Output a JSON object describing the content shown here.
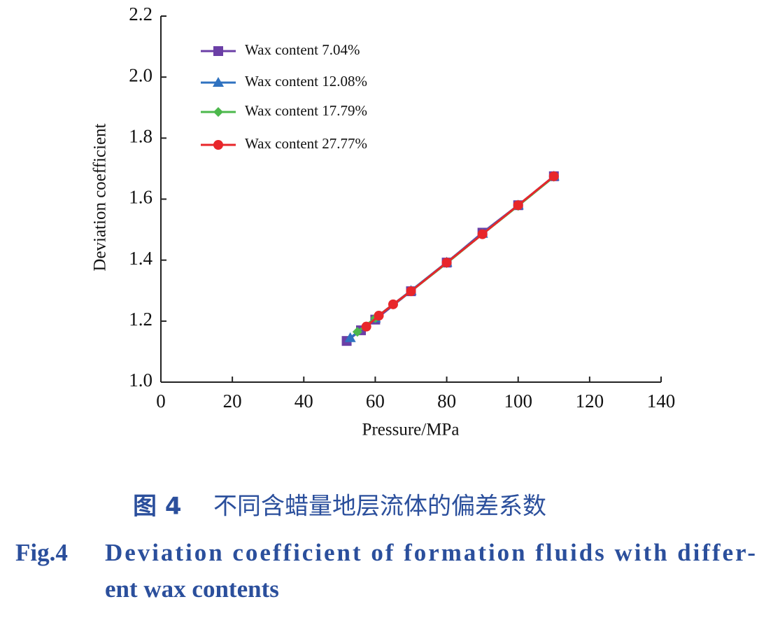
{
  "chart_data": {
    "type": "line",
    "xlabel": "Pressure/MPa",
    "ylabel": "Deviation coefficient",
    "xlim": [
      0,
      140
    ],
    "xticks": [
      0,
      20,
      40,
      60,
      80,
      100,
      120,
      140
    ],
    "ylim": [
      1.0,
      2.2
    ],
    "yticks": [
      {
        "value": 1.0,
        "label": "1.0"
      },
      1.2,
      1.4,
      1.6,
      1.8,
      {
        "value": 2.0,
        "label": "2.0"
      },
      2.2
    ],
    "grid": false,
    "legend": "upper left",
    "series": [
      {
        "name": "Wax content 7.04%",
        "color": "#6b3fa6",
        "marker": "square",
        "x": [
          52,
          56,
          60,
          70,
          80,
          90,
          100,
          110
        ],
        "values": [
          1.135,
          1.17,
          1.205,
          1.298,
          1.392,
          1.49,
          1.58,
          1.675
        ]
      },
      {
        "name": "Wax content 12.08%",
        "color": "#2f72c0",
        "marker": "triangle",
        "x": [
          53,
          60,
          70,
          80,
          90,
          100,
          110
        ],
        "values": [
          1.145,
          1.21,
          1.3,
          1.393,
          1.487,
          1.58,
          1.675
        ]
      },
      {
        "name": "Wax content 17.79%",
        "color": "#4cb84c",
        "marker": "diamond",
        "x": [
          55,
          60,
          70,
          80,
          90,
          100,
          110
        ],
        "values": [
          1.165,
          1.21,
          1.298,
          1.39,
          1.485,
          1.578,
          1.673
        ]
      },
      {
        "name": "Wax content 27.77%",
        "color": "#e8262a",
        "marker": "circle",
        "x": [
          57.5,
          61,
          65,
          70,
          80,
          90,
          100,
          110
        ],
        "values": [
          1.182,
          1.218,
          1.255,
          1.298,
          1.392,
          1.485,
          1.58,
          1.675
        ]
      }
    ]
  },
  "caption": {
    "label_cn": "图 4",
    "title_cn": "不同含蜡量地层流体的偏差系数",
    "label_en": "Fig.4",
    "title_en_lines": [
      "Deviation coefficient of formation fluids with differ-",
      "ent wax contents"
    ]
  }
}
